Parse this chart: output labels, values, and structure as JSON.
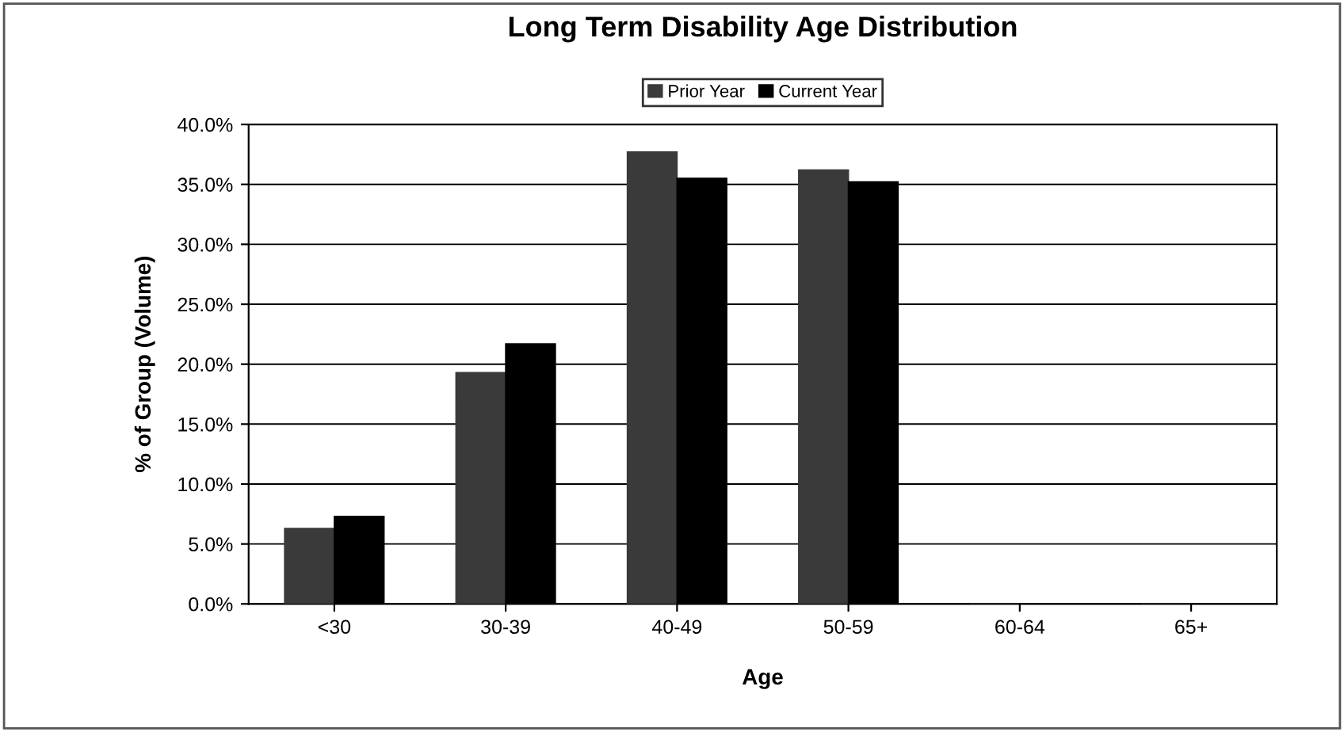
{
  "chart_data": {
    "type": "bar",
    "title": "Long Term Disability Age Distribution",
    "xlabel": "Age",
    "ylabel": "% of Group (Volume)",
    "categories": [
      "<30",
      "30-39",
      "40-49",
      "50-59",
      "60-64",
      "65+"
    ],
    "series": [
      {
        "name": "Prior Year",
        "color": "#3a3a3a",
        "values": [
          6.3,
          19.3,
          37.7,
          36.2,
          0,
          0
        ]
      },
      {
        "name": "Current Year",
        "color": "#000000",
        "values": [
          7.3,
          21.7,
          35.5,
          35.2,
          0,
          0
        ]
      }
    ],
    "ylim": [
      0,
      40
    ],
    "yticks": [
      {
        "value": 0,
        "label": "0.0%"
      },
      {
        "value": 5,
        "label": "5.0%"
      },
      {
        "value": 10,
        "label": "10.0%"
      },
      {
        "value": 15,
        "label": "15.0%"
      },
      {
        "value": 20,
        "label": "20.0%"
      },
      {
        "value": 25,
        "label": "25.0%"
      },
      {
        "value": 30,
        "label": "30.0%"
      },
      {
        "value": 35,
        "label": "35.0%"
      },
      {
        "value": 40,
        "label": "40.0%"
      }
    ],
    "grid": "y",
    "legend": "top"
  }
}
